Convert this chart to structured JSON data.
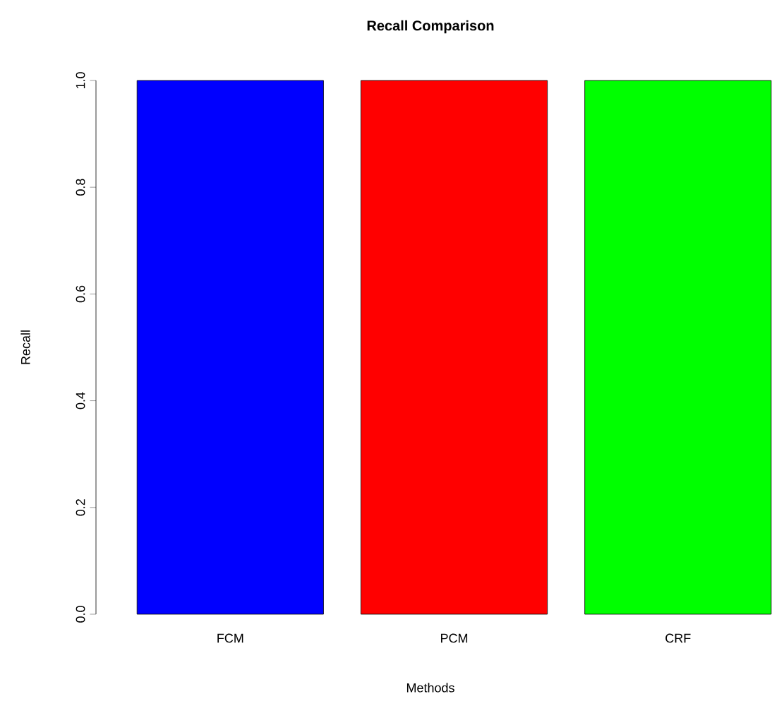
{
  "chart_data": {
    "type": "bar",
    "title": "Recall  Comparison",
    "xlabel": "Methods",
    "ylabel": "Recall",
    "categories": [
      "FCM",
      "PCM",
      "CRF"
    ],
    "values": [
      1.0,
      1.0,
      1.0
    ],
    "colors": [
      "#0000ff",
      "#ff0000",
      "#00ff00"
    ],
    "ylim": [
      0.0,
      1.0
    ],
    "yticks": [
      {
        "value": 0.0,
        "label": "0.0"
      },
      {
        "value": 0.2,
        "label": "0.2"
      },
      {
        "value": 0.4,
        "label": "0.4"
      },
      {
        "value": 0.6,
        "label": "0.6"
      },
      {
        "value": 0.8,
        "label": "0.8"
      },
      {
        "value": 1.0,
        "label": "1.0"
      }
    ],
    "grid": false
  }
}
